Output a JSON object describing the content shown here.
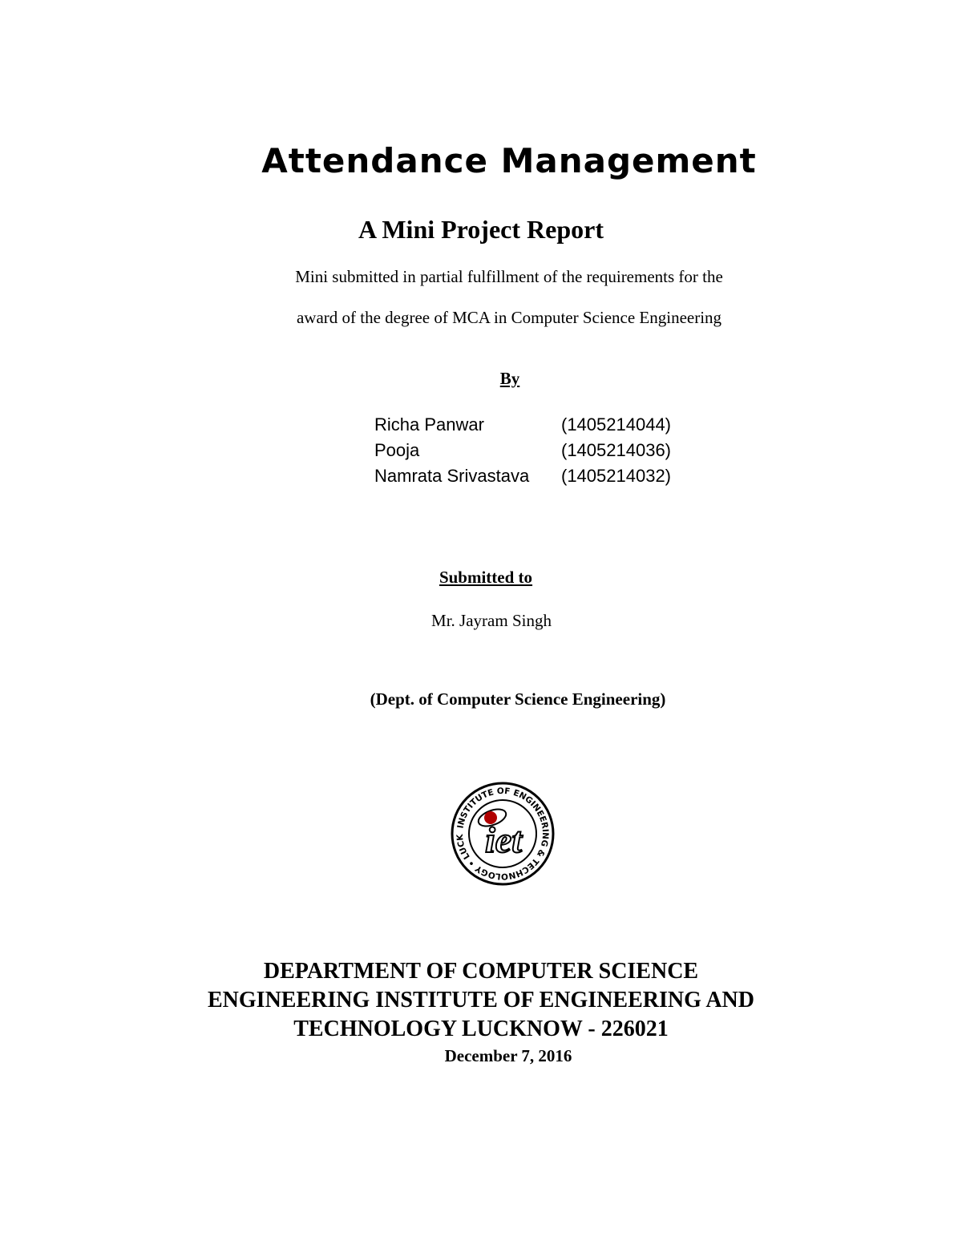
{
  "title": "Attendance Management",
  "subtitle": "A Mini Project Report",
  "description": [
    "Mini  submitted  in partial fulfillment  of the requirements  for the",
    "award of the degree of  MCA in Computer Science Engineering"
  ],
  "by_label": "By",
  "students": [
    {
      "name": "Richa Panwar",
      "roll": "(1405214044)"
    },
    {
      "name": "Pooja",
      "roll": "(1405214036)"
    },
    {
      "name": "Namrata Srivastava",
      "roll": "(1405214032)"
    }
  ],
  "submitted_to_label": "Submitted to",
  "guide": "Mr. Jayram Singh",
  "guide_dept": "(Dept. of Computer Science Engineering)",
  "logo": {
    "text": "iet",
    "ring_text": "INSTITUTE OF ENGINEERING & TECHNOLOGY • LUCKNOW •",
    "accent_color": "#b00000"
  },
  "institution": [
    "DEPARTMENT OF COMPUTER SCIENCE",
    "ENGINEERING INSTITUTE OF ENGINEERING AND",
    "TECHNOLOGY  LUCKNOW - 226021"
  ],
  "date": "December 7, 2016"
}
